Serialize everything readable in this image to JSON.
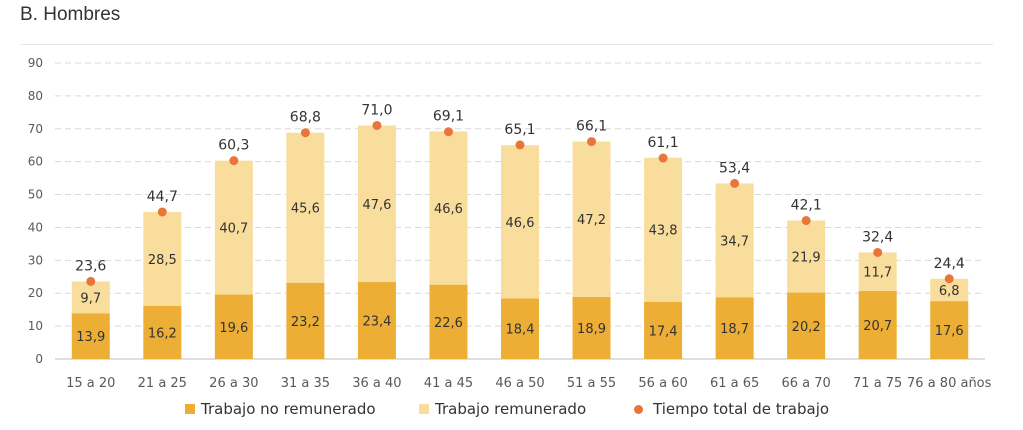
{
  "title": "B. Hombres",
  "colors": {
    "unpaid": "#ecae34",
    "paid": "#f9dd9d",
    "total": "#e8763a",
    "grid": "#d9d9d9",
    "axis_text": "#595959",
    "label_text": "#333333"
  },
  "legend": {
    "unpaid": "Trabajo no remunerado",
    "paid": "Trabajo remunerado",
    "total": "Tiempo total de trabajo"
  },
  "chart_data": {
    "type": "bar",
    "stacked": true,
    "title": "B. Hombres",
    "categories": [
      "15 a 20",
      "21 a 25",
      "26 a 30",
      "31 a 35",
      "36 a 40",
      "41 a 45",
      "46 a 50",
      "51 a 55",
      "56 a 60",
      "61 a 65",
      "66 a 70",
      "71 a 75",
      "76 a 80 años"
    ],
    "series": [
      {
        "name": "Trabajo no remunerado",
        "values": [
          13.9,
          16.2,
          19.6,
          23.2,
          23.4,
          22.6,
          18.4,
          18.9,
          17.4,
          18.7,
          20.2,
          20.7,
          17.6
        ]
      },
      {
        "name": "Trabajo remunerado",
        "values": [
          9.7,
          28.5,
          40.7,
          45.6,
          47.6,
          46.6,
          46.6,
          47.2,
          43.8,
          34.7,
          21.9,
          11.7,
          6.8
        ]
      },
      {
        "name": "Tiempo total de trabajo",
        "type": "scatter",
        "values": [
          23.6,
          44.7,
          60.3,
          68.8,
          71.0,
          69.1,
          65.1,
          66.1,
          61.1,
          53.4,
          42.1,
          32.4,
          24.4
        ]
      }
    ],
    "ylim": [
      0,
      90
    ],
    "yticks": [
      0,
      10,
      20,
      30,
      40,
      50,
      60,
      70,
      80,
      90
    ],
    "grid": true,
    "legend_position": "bottom",
    "decimal_separator": ","
  }
}
